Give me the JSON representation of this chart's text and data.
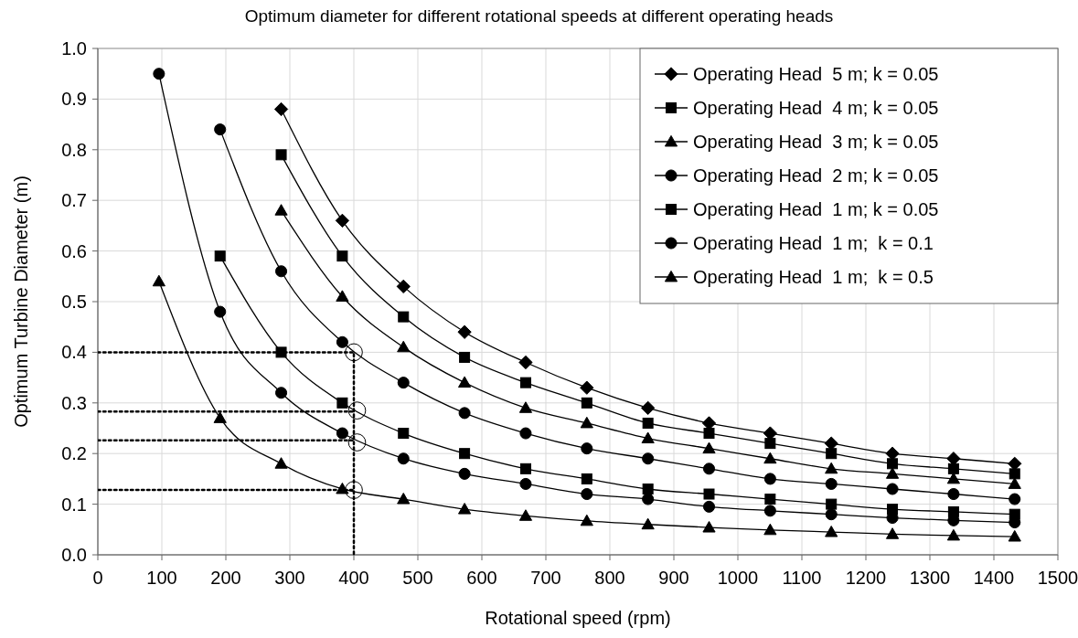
{
  "chart_data": {
    "type": "line",
    "title": "Optimum diameter for different rotational speeds at different operating heads",
    "xlabel": "Rotational speed (rpm)",
    "ylabel": "Optimum Turbine Diameter (m)",
    "x": [
      95.5,
      191,
      286.5,
      382,
      477.5,
      573,
      668.5,
      764,
      859.5,
      955,
      1050.5,
      1146,
      1241.5,
      1337,
      1432.5
    ],
    "xlim": [
      0,
      1500
    ],
    "xticks": [
      0,
      100,
      200,
      300,
      400,
      500,
      600,
      700,
      800,
      900,
      1000,
      1100,
      1200,
      1300,
      1400,
      1500
    ],
    "ylim": [
      0,
      1
    ],
    "yticks": [
      {
        "value": 0,
        "label": "0.0"
      },
      {
        "value": 0.1,
        "label": "0.1"
      },
      {
        "value": 0.2,
        "label": "0.2"
      },
      {
        "value": 0.3,
        "label": "0.3"
      },
      {
        "value": 0.4,
        "label": "0.4"
      },
      {
        "value": 0.5,
        "label": "0.5"
      },
      {
        "value": 0.6,
        "label": "0.6"
      },
      {
        "value": 0.7,
        "label": "0.7"
      },
      {
        "value": 0.8,
        "label": "0.8"
      },
      {
        "value": 0.9,
        "label": "0.9"
      },
      {
        "value": 1,
        "label": "1.0"
      }
    ],
    "grid": true,
    "legend": "top right",
    "line_style": "solid",
    "series": [
      {
        "name": "Operating Head  5 m; k = 0.05",
        "color": "#000000",
        "marker": "diamond",
        "values": [
          null,
          null,
          0.88,
          0.66,
          0.53,
          0.44,
          0.38,
          0.33,
          0.29,
          0.26,
          0.24,
          0.22,
          0.2,
          0.19,
          0.18
        ]
      },
      {
        "name": "Operating Head  4 m; k = 0.05",
        "color": "#000000",
        "marker": "square",
        "values": [
          null,
          null,
          0.79,
          0.59,
          0.47,
          0.39,
          0.34,
          0.3,
          0.26,
          0.24,
          0.22,
          0.2,
          0.18,
          0.17,
          0.16
        ]
      },
      {
        "name": "Operating Head  3 m; k = 0.05",
        "color": "#000000",
        "marker": "triangle",
        "values": [
          null,
          null,
          0.68,
          0.51,
          0.41,
          0.34,
          0.29,
          0.26,
          0.23,
          0.21,
          0.19,
          0.17,
          0.16,
          0.15,
          0.14
        ]
      },
      {
        "name": "Operating Head  2 m; k = 0.05",
        "color": "#000000",
        "marker": "circle",
        "values": [
          null,
          0.84,
          0.56,
          0.42,
          0.34,
          0.28,
          0.24,
          0.21,
          0.19,
          0.17,
          0.15,
          0.14,
          0.13,
          0.12,
          0.11
        ]
      },
      {
        "name": "Operating Head  1 m; k = 0.05",
        "color": "#000000",
        "marker": "square",
        "values": [
          null,
          0.59,
          0.4,
          0.3,
          0.24,
          0.2,
          0.17,
          0.15,
          0.13,
          0.12,
          0.11,
          0.1,
          0.09,
          0.085,
          0.08
        ]
      },
      {
        "name": "Operating Head  1 m;  k = 0.1",
        "color": "#000000",
        "marker": "circle",
        "values": [
          0.95,
          0.48,
          0.32,
          0.24,
          0.19,
          0.16,
          0.14,
          0.12,
          0.11,
          0.095,
          0.087,
          0.08,
          0.073,
          0.068,
          0.064
        ]
      },
      {
        "name": "Operating Head  1 m;  k = 0.5",
        "color": "#000000",
        "marker": "triangle",
        "values": [
          0.54,
          0.27,
          0.18,
          0.13,
          0.11,
          0.09,
          0.077,
          0.067,
          0.06,
          0.054,
          0.049,
          0.045,
          0.041,
          0.038,
          0.036
        ]
      },
      {
        "color": "#000000",
        "line_style": "dotted",
        "marker": "none",
        "x": [
          0,
          400,
          400
        ],
        "values": [
          0.4,
          0.4,
          0
        ]
      },
      {
        "color": "#000000",
        "line_style": "dotted",
        "marker": "none",
        "x": [
          0,
          400
        ],
        "values": [
          0.283,
          0.283
        ]
      },
      {
        "color": "#000000",
        "line_style": "dotted",
        "marker": "none",
        "x": [
          0,
          400
        ],
        "values": [
          0.226,
          0.226
        ]
      },
      {
        "color": "#000000",
        "line_style": "dotted",
        "marker": "none",
        "x": [
          0,
          400
        ],
        "values": [
          0.128,
          0.128
        ]
      },
      {
        "type": "scatter",
        "color": "#000000",
        "marker": "circle",
        "x": [
          400,
          405,
          405,
          400
        ],
        "values": [
          0.4,
          0.285,
          0.222,
          0.128
        ]
      }
    ]
  }
}
